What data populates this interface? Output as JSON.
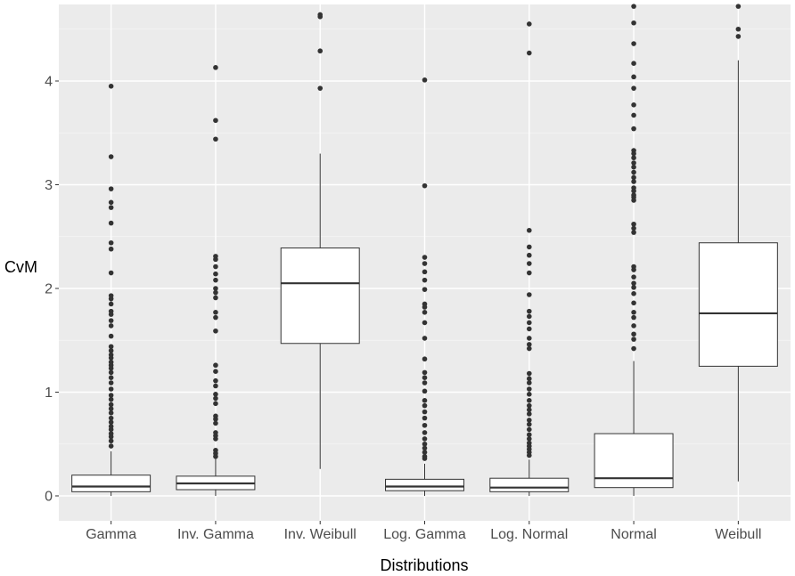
{
  "chart_data": {
    "type": "boxplot",
    "xlabel": "Distributions",
    "ylabel": "CvM",
    "ylim": [
      -0.1,
      4.7
    ],
    "yticks": [
      0,
      1,
      2,
      3,
      4
    ],
    "grid": true,
    "colors": {
      "panel": "#ebebeb",
      "grid_major": "#ffffff",
      "grid_minor": "#f5f5f5",
      "box_fill": "#ffffff",
      "box_line": "#333333",
      "point": "#333333"
    },
    "categories": [
      "Gamma",
      "Inv. Gamma",
      "Inv. Weibull",
      "Log. Gamma",
      "Log. Normal",
      "Normal",
      "Weibull"
    ],
    "boxes": [
      {
        "name": "Gamma",
        "q1": 0.04,
        "median": 0.09,
        "q3": 0.2,
        "whisker_low": 0.0,
        "whisker_high": 0.43,
        "outliers": [
          3.95,
          3.27,
          2.96,
          2.83,
          2.78,
          2.63,
          2.44,
          2.38,
          2.15,
          1.93,
          1.9,
          1.85,
          1.78,
          1.75,
          1.69,
          1.64,
          1.54,
          1.44,
          1.4,
          1.36,
          1.33,
          1.29,
          1.26,
          1.23,
          1.19,
          1.14,
          1.09,
          1.03,
          0.97,
          0.93,
          0.88,
          0.84,
          0.8,
          0.75,
          0.71,
          0.67,
          0.64,
          0.6,
          0.57,
          0.53,
          0.48
        ]
      },
      {
        "name": "Inv. Gamma",
        "q1": 0.06,
        "median": 0.12,
        "q3": 0.19,
        "whisker_low": 0.0,
        "whisker_high": 0.37,
        "outliers": [
          4.13,
          3.62,
          3.44,
          2.31,
          2.28,
          2.21,
          2.14,
          2.08,
          2.0,
          1.96,
          1.91,
          1.77,
          1.72,
          1.59,
          1.26,
          1.2,
          1.11,
          1.06,
          0.98,
          0.94,
          0.89,
          0.77,
          0.74,
          0.7,
          0.61,
          0.58,
          0.55,
          0.44,
          0.41,
          0.38
        ]
      },
      {
        "name": "Inv. Weibull",
        "q1": 1.47,
        "median": 2.05,
        "q3": 2.39,
        "whisker_low": 0.26,
        "whisker_high": 3.3,
        "outliers": [
          4.64,
          4.62,
          4.29,
          3.93
        ]
      },
      {
        "name": "Log. Gamma",
        "q1": 0.05,
        "median": 0.09,
        "q3": 0.16,
        "whisker_low": 0.0,
        "whisker_high": 0.31,
        "outliers": [
          4.01,
          2.99,
          2.3,
          2.24,
          2.16,
          2.08,
          1.99,
          1.85,
          1.82,
          1.77,
          1.67,
          1.52,
          1.32,
          1.19,
          1.14,
          1.09,
          1.01,
          0.92,
          0.87,
          0.81,
          0.75,
          0.68,
          0.61,
          0.55,
          0.5,
          0.46,
          0.42,
          0.38,
          0.36
        ]
      },
      {
        "name": "Log. Normal",
        "q1": 0.04,
        "median": 0.08,
        "q3": 0.17,
        "whisker_low": 0.0,
        "whisker_high": 0.35,
        "outliers": [
          4.55,
          4.27,
          2.56,
          2.4,
          2.32,
          2.24,
          2.15,
          1.94,
          1.78,
          1.73,
          1.67,
          1.61,
          1.52,
          1.46,
          1.42,
          1.18,
          1.13,
          1.09,
          1.03,
          0.98,
          0.92,
          0.87,
          0.83,
          0.79,
          0.73,
          0.69,
          0.64,
          0.59,
          0.55,
          0.51,
          0.48,
          0.45,
          0.42,
          0.39
        ]
      },
      {
        "name": "Normal",
        "q1": 0.08,
        "median": 0.17,
        "q3": 0.6,
        "whisker_low": 0.0,
        "whisker_high": 1.3,
        "outliers": [
          4.72,
          4.56,
          4.36,
          4.17,
          4.04,
          3.93,
          3.77,
          3.67,
          3.54,
          3.33,
          3.3,
          3.26,
          3.21,
          3.17,
          3.12,
          3.07,
          3.03,
          2.97,
          2.94,
          2.9,
          2.88,
          2.85,
          2.62,
          2.58,
          2.54,
          2.21,
          2.18,
          2.11,
          2.05,
          2.01,
          1.95,
          1.86,
          1.77,
          1.72,
          1.64,
          1.56,
          1.51,
          1.42
        ]
      },
      {
        "name": "Weibull",
        "q1": 1.25,
        "median": 1.76,
        "q3": 2.44,
        "whisker_low": 0.14,
        "whisker_high": 4.2,
        "outliers": [
          4.72,
          4.5,
          4.43
        ]
      }
    ]
  }
}
